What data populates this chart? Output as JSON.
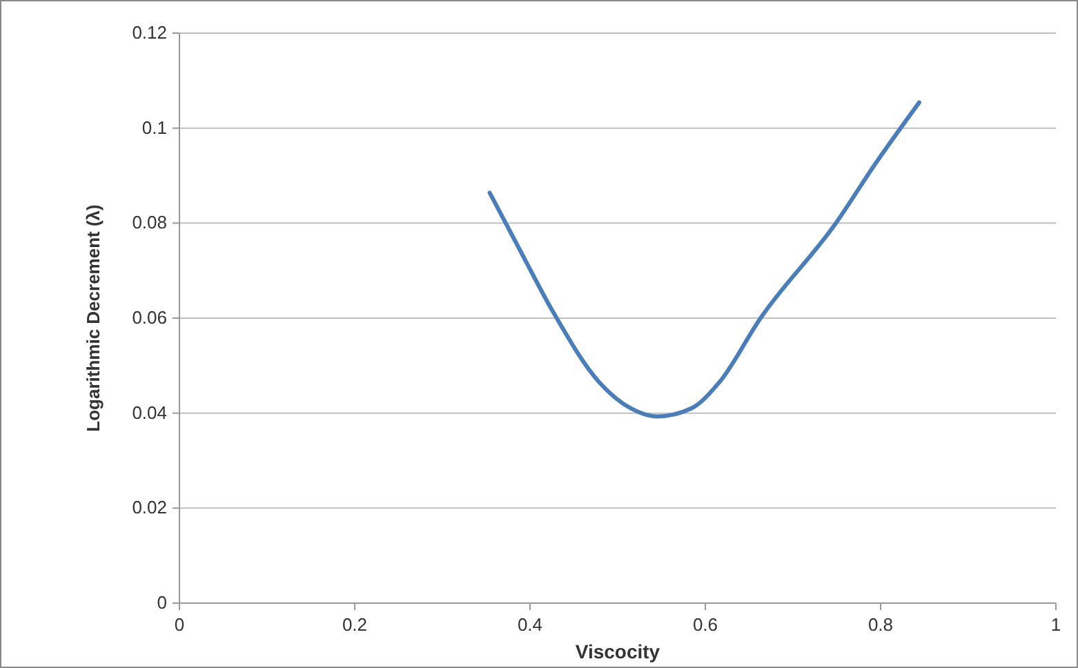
{
  "chart_data": {
    "type": "line",
    "xlabel": "Viscocity",
    "ylabel": "Logarithmic Decrement (λ)",
    "x": [
      0.354,
      0.39,
      0.426,
      0.479,
      0.516,
      0.545,
      0.584,
      0.616,
      0.663,
      0.749,
      0.794,
      0.844
    ],
    "series": [
      {
        "color": "#4a7ebb",
        "values": [
          0.0864,
          0.0738,
          0.0614,
          0.0465,
          0.0409,
          0.0393,
          0.041,
          0.0465,
          0.06,
          0.08,
          0.0925,
          0.1054
        ]
      }
    ],
    "xlim": [
      0,
      1
    ],
    "xticks": [
      0,
      0.2,
      0.4,
      0.6,
      0.8,
      1
    ],
    "ylim": [
      0,
      0.12
    ],
    "yticks": [
      0,
      0.02,
      0.04,
      0.06,
      0.08,
      0.1,
      0.12
    ],
    "grid": "y",
    "marker": "none",
    "line_style": "solid"
  }
}
